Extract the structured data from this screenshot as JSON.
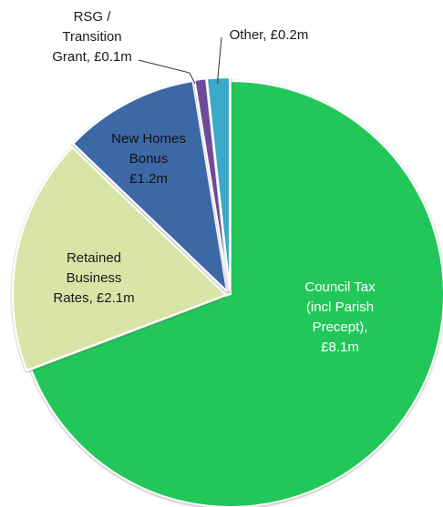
{
  "chart_data": {
    "type": "pie",
    "title": "",
    "unit": "£m",
    "slices": [
      {
        "name": "Council Tax (incl Parish Precept)",
        "value": 8.1,
        "label_lines": [
          "Council Tax",
          "(incl Parish",
          "Precept),",
          "£8.1m"
        ],
        "color": "#22c75a",
        "label_color": "#ffffff"
      },
      {
        "name": "Retained Business Rates",
        "value": 2.1,
        "label_lines": [
          "Retained",
          "Business",
          "Rates, £2.1m"
        ],
        "color": "#d9e5a6",
        "label_color": "#1a1a1a"
      },
      {
        "name": "New Homes Bonus",
        "value": 1.2,
        "label_lines": [
          "New Homes",
          "Bonus",
          "£1.2m"
        ],
        "color": "#3e67a6",
        "label_color": "#111111"
      },
      {
        "name": "RSG / Transition Grant",
        "value": 0.1,
        "label_lines": [
          "RSG /",
          "Transition",
          "Grant, £0.1m"
        ],
        "color": "#6e4b9a",
        "label_color": "#1a1a1a"
      },
      {
        "name": "Other",
        "value": 0.2,
        "label_lines": [
          "Other, £0.2m"
        ],
        "color": "#3aaac8",
        "label_color": "#1a1a1a"
      }
    ],
    "legend": "none"
  }
}
